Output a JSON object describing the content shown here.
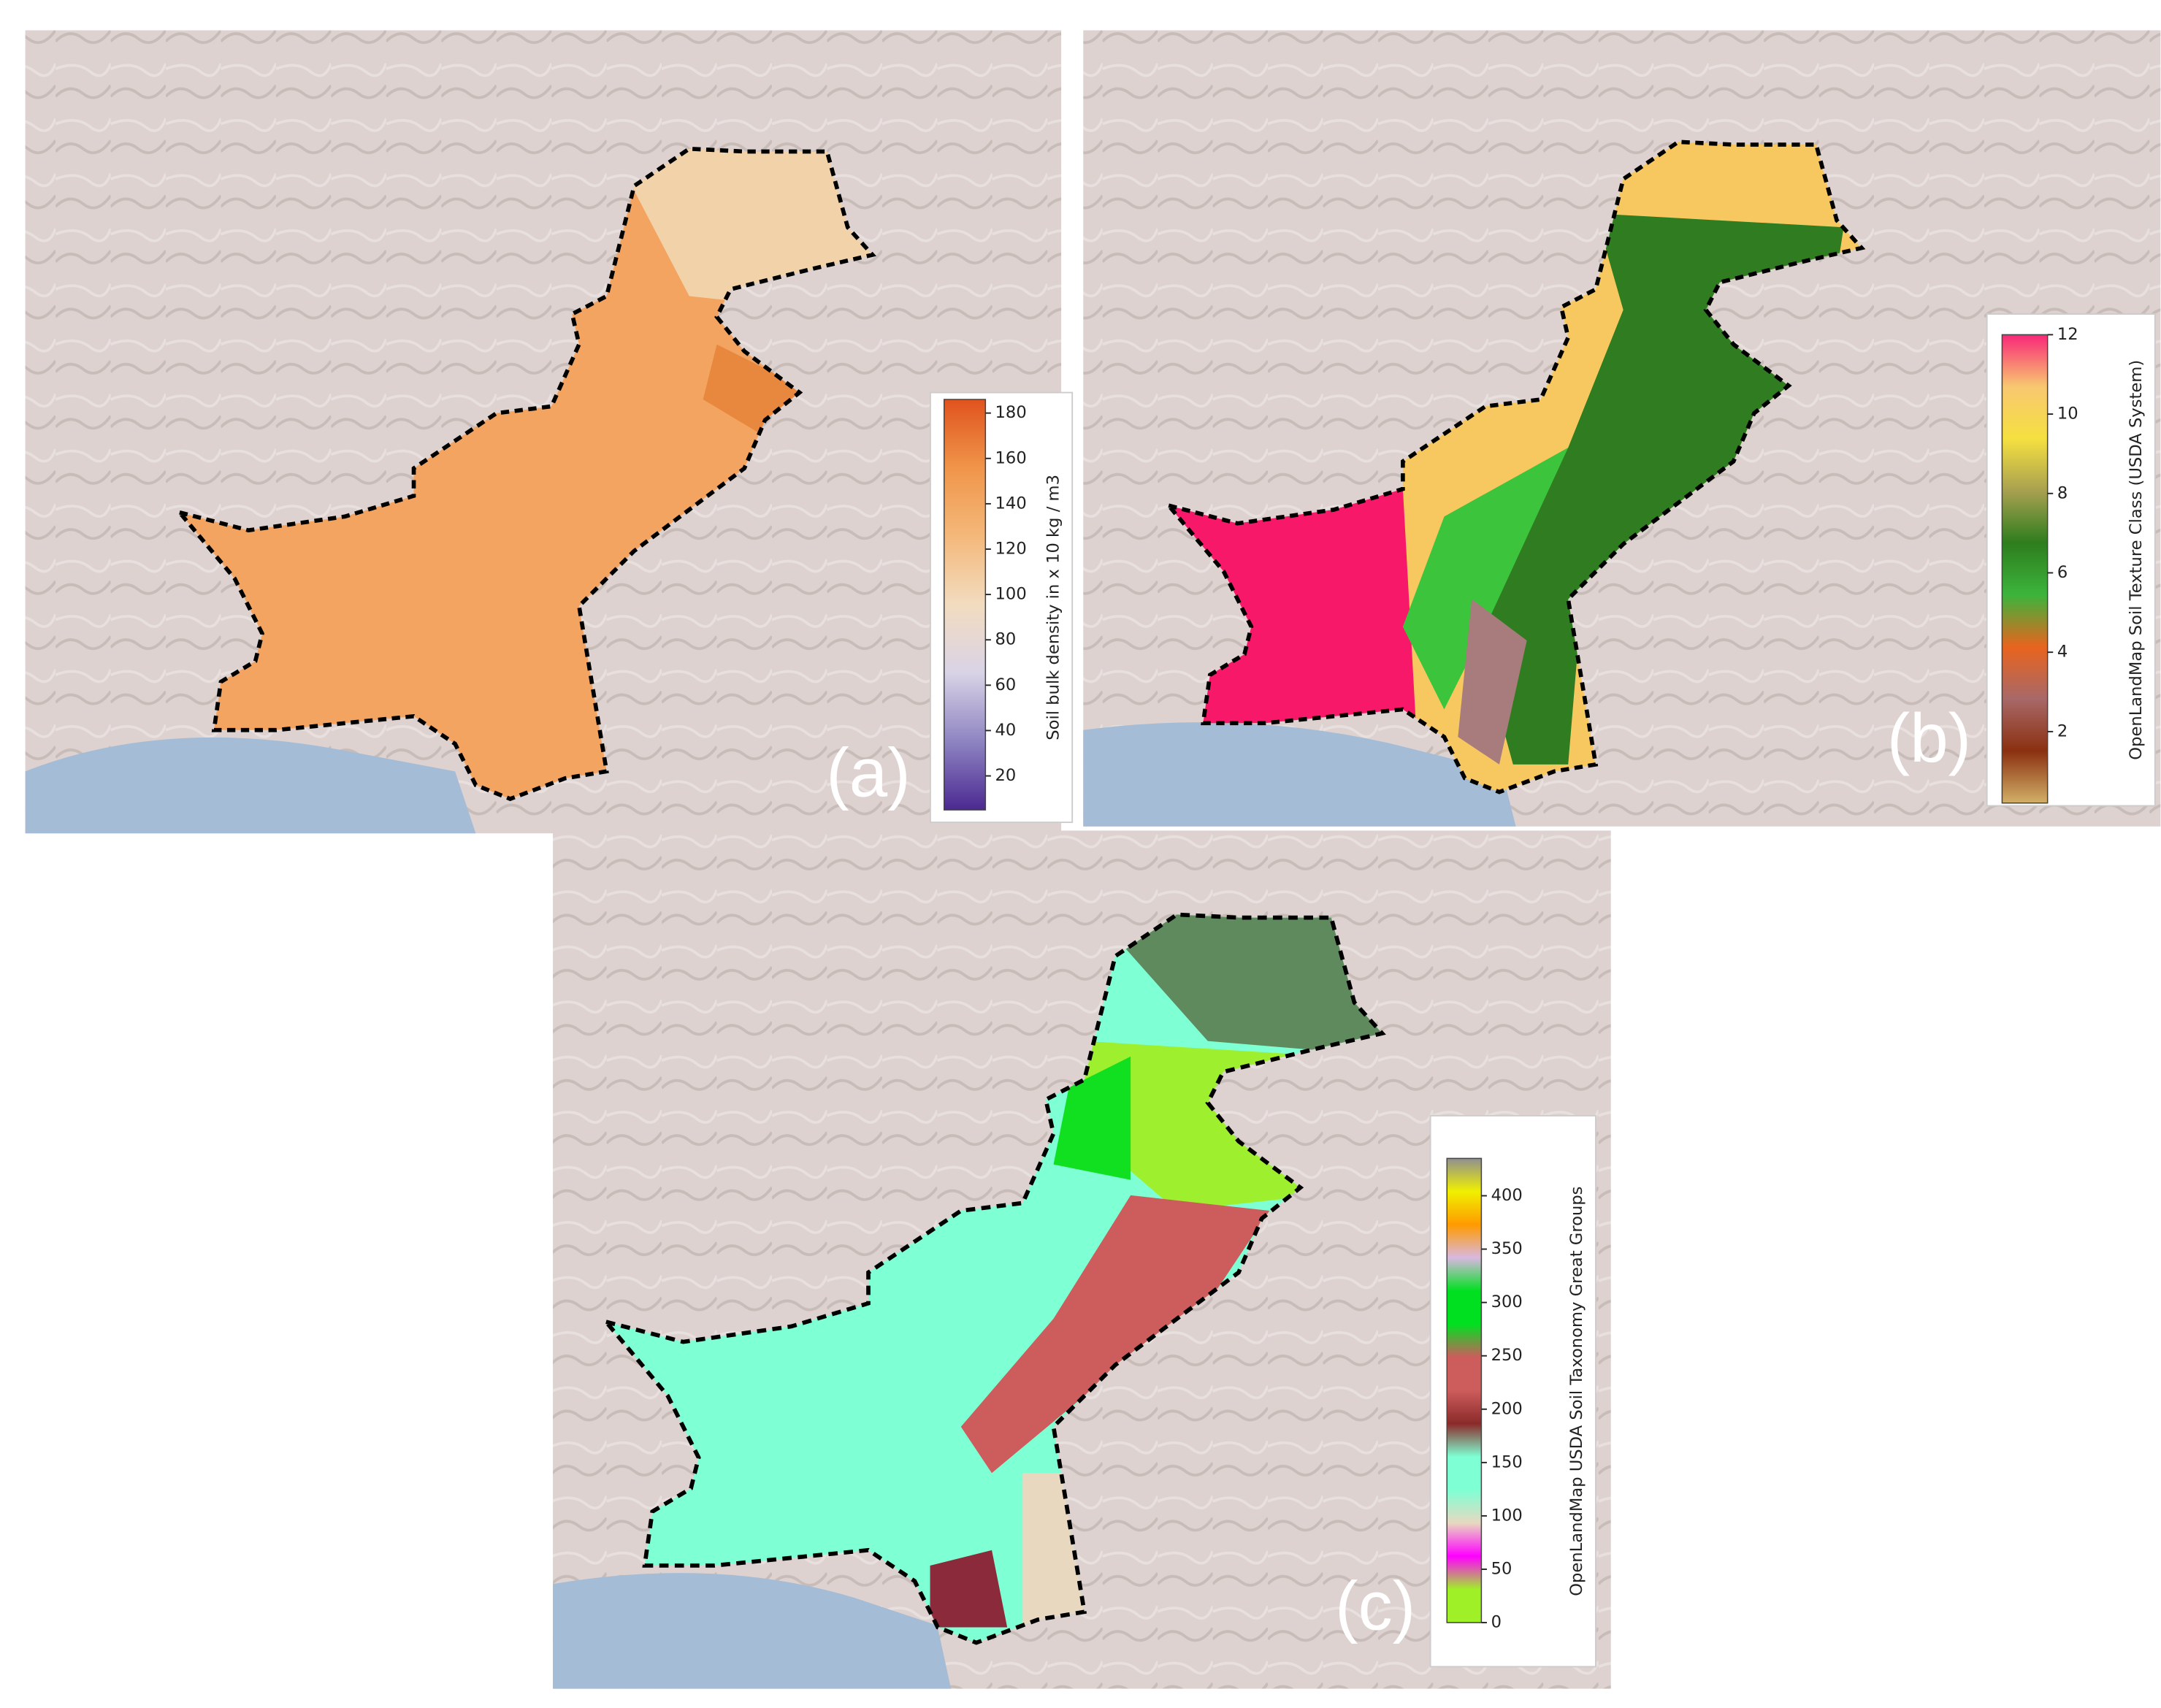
{
  "panels": [
    {
      "label": "(a)",
      "colorbar": {
        "label": "Soil bulk density in x 10 kg / m3",
        "lim": [
          5,
          186
        ],
        "ticks": [
          20,
          40,
          60,
          80,
          100,
          120,
          140,
          160,
          180
        ],
        "colors": [
          "#4b2991",
          "#8e84c2",
          "#d9d3e6",
          "#f2dcc0",
          "#f4b87a",
          "#f0954a",
          "#e0531e"
        ]
      }
    },
    {
      "label": "(b)",
      "colorbar": {
        "label": "OpenLandMap Soil Texture Class (USDA System)",
        "lim": [
          0.2,
          12
        ],
        "ticks": [
          2,
          4,
          6,
          8,
          10,
          12
        ],
        "colors": [
          "#d2b068",
          "#8b3010",
          "#a86868",
          "#e8641e",
          "#3cb43c",
          "#2e7d1e",
          "#a8a050",
          "#f5e040",
          "#f8c870",
          "#f82878"
        ]
      }
    },
    {
      "label": "(c)",
      "colorbar": {
        "label": "OpenLandMap USDA Soil Taxonomy Great Groups",
        "lim": [
          0,
          435
        ],
        "ticks": [
          0,
          50,
          100,
          150,
          200,
          250,
          300,
          350,
          400
        ],
        "colors": [
          "#a0f028",
          "#a0f028",
          "#ff00ff",
          "#e8d8c0",
          "#7fffd4",
          "#7fffd4",
          "#8b2a2a",
          "#cd5c5c",
          "#cd5c5c",
          "#00e020",
          "#00e020",
          "#d8b8e0",
          "#ff9a00",
          "#f0f000",
          "#909090"
        ]
      }
    }
  ]
}
